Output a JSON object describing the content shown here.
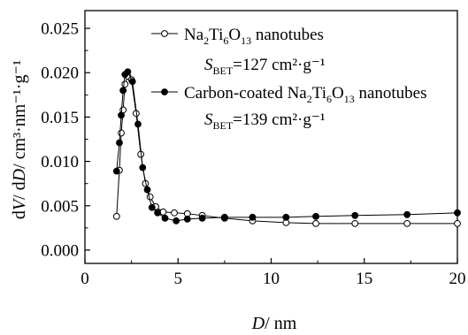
{
  "chart_data": {
    "type": "line",
    "xlabel": {
      "italic": "D",
      "rest": "/ nm"
    },
    "ylabel": {
      "pre": "d",
      "v": "V",
      "mid": "/ d",
      "d": "D",
      "rest": "/ cm³·nm⁻¹·g⁻¹"
    },
    "xlim": [
      0,
      20
    ],
    "ylim": [
      -0.0015,
      0.027
    ],
    "xticks": [
      "0",
      "5",
      "10",
      "15",
      "20"
    ],
    "yticks": [
      "0.000",
      "0.005",
      "0.010",
      "0.015",
      "0.020",
      "0.025"
    ],
    "grid": false,
    "legend": "top-right",
    "series": [
      {
        "name": "Na2Ti6O13 nanotubes",
        "legend_parts": {
          "a": "Na",
          "a_sub": "2",
          "b": "Ti",
          "b_sub": "6",
          "c": "O",
          "c_sub": "13",
          "d": " nanotubes"
        },
        "bet": {
          "s": "S",
          "sub": "BET",
          "val": "=127 cm²·g⁻¹"
        },
        "marker": "open-circle",
        "x": [
          1.7,
          1.85,
          1.95,
          2.05,
          2.15,
          2.3,
          2.5,
          2.75,
          3.0,
          3.25,
          3.5,
          3.8,
          4.2,
          4.8,
          5.5,
          6.3,
          7.5,
          9.0,
          10.8,
          12.4,
          14.5,
          17.3,
          20.0
        ],
        "y": [
          0.0038,
          0.009,
          0.0132,
          0.0158,
          0.0187,
          0.0196,
          0.0192,
          0.0154,
          0.0108,
          0.0075,
          0.006,
          0.0049,
          0.0043,
          0.0042,
          0.0041,
          0.0039,
          0.0036,
          0.0033,
          0.0031,
          0.003,
          0.003,
          0.003,
          0.003
        ]
      },
      {
        "name": "Carbon-coated Na2Ti6O13 nanotubes",
        "legend_parts": {
          "a": "Carbon-coated Na",
          "a_sub": "2",
          "b": "Ti",
          "b_sub": "6",
          "c": "O",
          "c_sub": "13",
          "d": " nanotubes"
        },
        "bet": {
          "s": "S",
          "sub": "BET",
          "val": "=139 cm²·g⁻¹"
        },
        "marker": "filled-circle",
        "x": [
          1.7,
          1.85,
          1.95,
          2.05,
          2.15,
          2.3,
          2.55,
          2.85,
          3.1,
          3.35,
          3.6,
          3.9,
          4.3,
          4.9,
          5.5,
          6.3,
          7.5,
          9.0,
          10.8,
          12.4,
          14.5,
          17.3,
          20.0
        ],
        "y": [
          0.0089,
          0.0121,
          0.0152,
          0.018,
          0.0198,
          0.0201,
          0.019,
          0.0142,
          0.0093,
          0.0068,
          0.0048,
          0.0042,
          0.0036,
          0.0033,
          0.0035,
          0.0036,
          0.0037,
          0.0037,
          0.0037,
          0.0038,
          0.0039,
          0.004,
          0.0042
        ]
      }
    ]
  }
}
